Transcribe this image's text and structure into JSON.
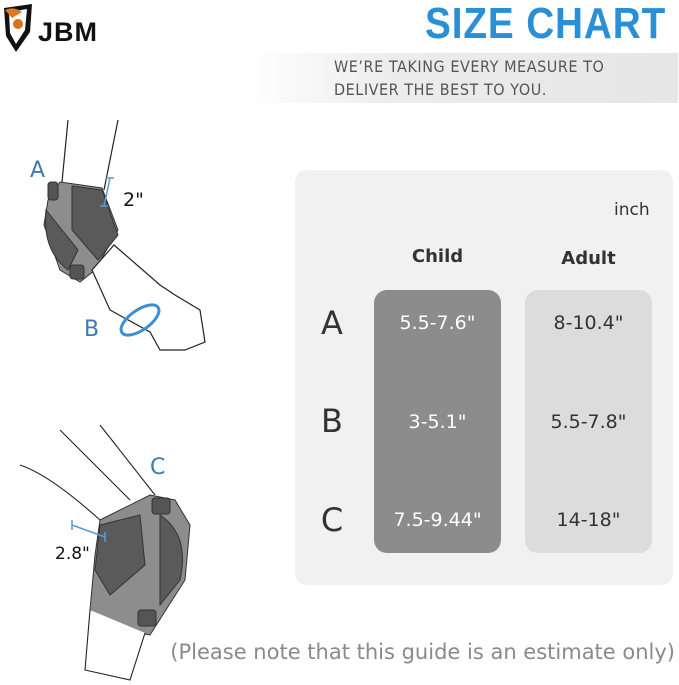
{
  "brand": {
    "logo_text": "JBM"
  },
  "header": {
    "title": "SIZE CHART",
    "tagline_line1": "WE’RE TAKING EVERY MEASURE TO",
    "tagline_line2": "DELIVER THE BEST TO YOU."
  },
  "illustration": {
    "elbow_labels": {
      "a": "A",
      "b": "B",
      "a_width": "2\""
    },
    "knee_labels": {
      "c": "C",
      "c_width": "2.8\""
    }
  },
  "size_table": {
    "unit": "inch",
    "columns": [
      "Child",
      "Adult"
    ],
    "rows": [
      {
        "label": "A",
        "child": "5.5-7.6\"",
        "adult": "8-10.4\""
      },
      {
        "label": "B",
        "child": "3-5.1\"",
        "adult": "5.5-7.8\""
      },
      {
        "label": "C",
        "child": "7.5-9.44\"",
        "adult": "14-18\""
      }
    ],
    "colors": {
      "panel": "#f1f1f1",
      "child_column": "#8c8c8c",
      "adult_column": "#dcdcdc"
    }
  },
  "note": "(Please note that this guide is an estimate only)"
}
